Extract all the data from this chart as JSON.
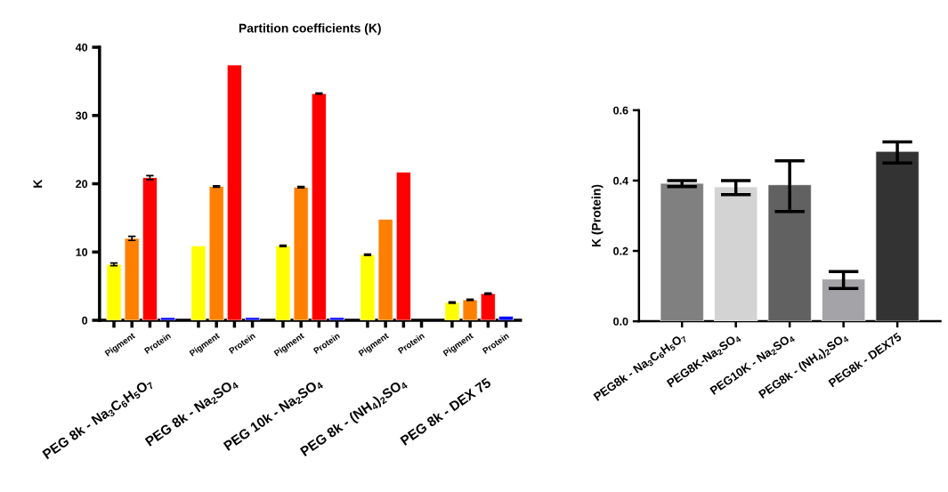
{
  "chart_data": [
    {
      "type": "bar",
      "title": "Partition coefficients (K)",
      "ylabel": "K",
      "categories": [
        null,
        "Pigment",
        null,
        "Protein",
        null,
        "Pigment",
        null,
        "Protein",
        null,
        "Pigment",
        null,
        "Protein",
        null,
        "Pigment",
        null,
        "Protein",
        null,
        "Pigment",
        null,
        "Protein"
      ],
      "values": [
        8.2,
        12.0,
        20.9,
        0.4,
        10.9,
        19.6,
        37.4,
        0.4,
        10.9,
        19.5,
        33.2,
        0.4,
        9.6,
        14.8,
        21.7,
        null,
        2.6,
        3.0,
        3.9,
        0.6
      ],
      "colors": [
        "#ffff00",
        "#ff8000",
        "#ff0000",
        "#0000ff",
        "#ffff00",
        "#ff8000",
        "#ff0000",
        "#0000ff",
        "#ffff00",
        "#ff8000",
        "#ff0000",
        "#0000ff",
        "#ffff00",
        "#ff8000",
        "#ff0000",
        "#0000ff",
        "#ffff00",
        "#ff8000",
        "#ff0000",
        "#0000ff"
      ],
      "errors": [
        0.2,
        0.3,
        0.3,
        null,
        null,
        0.1,
        null,
        null,
        0.1,
        0.1,
        0.1,
        null,
        0.1,
        null,
        null,
        null,
        0.1,
        0.1,
        0.1,
        null
      ],
      "ylim": [
        0,
        40
      ],
      "yticks": [
        0,
        10,
        20,
        30,
        40
      ],
      "grid": false,
      "annotations": [
        "PEG 8k - Na$_{3}$C$_{6}$H$_{5}$O$_{7}$",
        "PEG 8k - Na$_{2}$SO$_{4}$",
        "PEG 10k - Na$_{2}$SO$_{4}$",
        "PEG 8k - (NH$_{4}$)$_{2}$SO$_{4}$",
        "PEG 8k - DEX 75"
      ]
    },
    {
      "type": "bar",
      "ylabel": "K (Protein)",
      "categories": [
        "PEG8k - Na$_{3}$C$_{6}$H$_{5}$O$_{7}$",
        "PEG8K-Na$_{2}$SO$_{4}$",
        "PEG10K - Na$_{2}$SO$_{4}$",
        "PEG8k - (NH$_{4}$)$_{2}$SO$_{4}$",
        "PEG8k - DEX75"
      ],
      "values": [
        0.392,
        0.382,
        0.388,
        0.12,
        0.483
      ],
      "colors": [
        "#808080",
        "#d3d3d3",
        "#616161",
        "#a4a4a8",
        "#333333"
      ],
      "errors": [
        [
          0.383,
          0.4
        ],
        [
          0.36,
          0.4
        ],
        [
          0.312,
          0.456
        ],
        [
          0.093,
          0.141
        ],
        [
          0.45,
          0.51
        ]
      ],
      "ylim": [
        0,
        0.6
      ],
      "yticks": [
        {
          "value": 0,
          "label": "0.0"
        },
        {
          "value": 0.2,
          "label": "0.2"
        },
        {
          "value": 0.4,
          "label": "0.4"
        },
        {
          "value": 0.6,
          "label": "0.6"
        }
      ],
      "grid": false
    }
  ]
}
